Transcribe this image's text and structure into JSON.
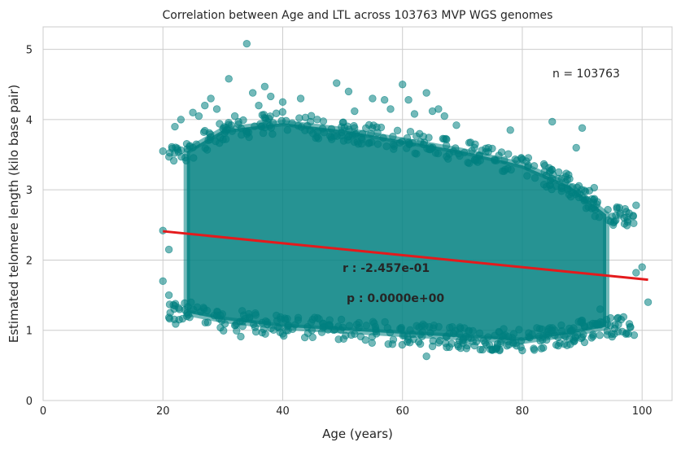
{
  "chart_data": {
    "type": "scatter",
    "title": "Correlation between Age and LTL across 103763 MVP WGS genomes",
    "xlabel": "Age (years)",
    "ylabel": "Estimated telomere length (kilo base pair)",
    "xlim": [
      0,
      105
    ],
    "ylim": [
      0,
      5.32
    ],
    "x_ticks": [
      0,
      20,
      40,
      60,
      80,
      100
    ],
    "y_ticks": [
      0,
      1,
      2,
      3,
      4,
      5
    ],
    "grid": true,
    "point_color": "#008080",
    "line_color": "#e41a1c",
    "cloud": [
      {
        "x": 24,
        "lo": 1.25,
        "hi": 3.55
      },
      {
        "x": 30,
        "lo": 1.15,
        "hi": 3.85
      },
      {
        "x": 40,
        "lo": 1.05,
        "hi": 3.95
      },
      {
        "x": 50,
        "lo": 1.0,
        "hi": 3.85
      },
      {
        "x": 60,
        "lo": 0.95,
        "hi": 3.7
      },
      {
        "x": 70,
        "lo": 0.9,
        "hi": 3.55
      },
      {
        "x": 80,
        "lo": 0.85,
        "hi": 3.35
      },
      {
        "x": 88,
        "lo": 0.95,
        "hi": 3.05
      },
      {
        "x": 94,
        "lo": 1.05,
        "hi": 2.65
      }
    ],
    "points": [
      [
        20,
        3.55
      ],
      [
        20,
        2.42
      ],
      [
        20,
        1.7
      ],
      [
        21,
        1.5
      ],
      [
        21,
        2.15
      ],
      [
        22,
        1.35
      ],
      [
        22,
        3.9
      ],
      [
        23,
        4.0
      ],
      [
        24,
        1.2
      ],
      [
        25,
        4.1
      ],
      [
        26,
        4.05
      ],
      [
        27,
        4.2
      ],
      [
        28,
        4.3
      ],
      [
        29,
        4.15
      ],
      [
        31,
        4.58
      ],
      [
        32,
        4.05
      ],
      [
        33,
        0.91
      ],
      [
        34,
        5.08
      ],
      [
        35,
        4.38
      ],
      [
        36,
        4.2
      ],
      [
        37,
        4.47
      ],
      [
        38,
        4.33
      ],
      [
        40,
        4.25
      ],
      [
        40,
        0.95
      ],
      [
        43,
        4.3
      ],
      [
        45,
        0.9
      ],
      [
        49,
        4.52
      ],
      [
        51,
        4.4
      ],
      [
        52,
        4.12
      ],
      [
        55,
        4.3
      ],
      [
        57,
        4.28
      ],
      [
        58,
        4.15
      ],
      [
        60,
        4.5
      ],
      [
        61,
        4.28
      ],
      [
        62,
        4.08
      ],
      [
        64,
        4.38
      ],
      [
        64,
        0.63
      ],
      [
        65,
        4.12
      ],
      [
        66,
        4.15
      ],
      [
        67,
        4.05
      ],
      [
        69,
        3.92
      ],
      [
        72,
        3.6
      ],
      [
        78,
        3.85
      ],
      [
        82,
        0.72
      ],
      [
        83,
        0.85
      ],
      [
        85,
        3.97
      ],
      [
        86,
        0.78
      ],
      [
        88,
        0.8
      ],
      [
        89,
        3.6
      ],
      [
        90,
        3.88
      ],
      [
        90,
        0.9
      ],
      [
        92,
        3.03
      ],
      [
        93,
        1.3
      ],
      [
        95,
        2.62
      ],
      [
        96,
        0.98
      ],
      [
        97,
        2.6
      ],
      [
        98,
        1.05
      ],
      [
        99,
        2.78
      ],
      [
        99,
        1.82
      ],
      [
        100,
        1.9
      ],
      [
        101,
        1.4
      ]
    ],
    "regression": {
      "x": [
        20,
        101
      ],
      "y": [
        2.41,
        1.72
      ]
    },
    "annotations": {
      "n": "n = 103763",
      "r": "r : -2.457e-01",
      "p": "p : 0.0000e+00"
    }
  }
}
